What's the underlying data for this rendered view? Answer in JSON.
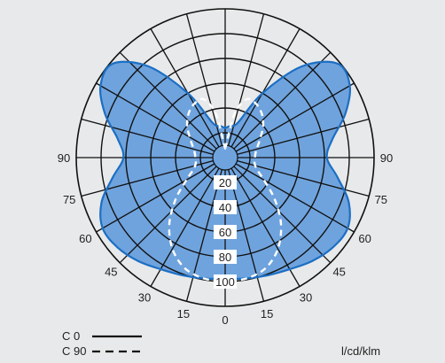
{
  "chart_data": {
    "type": "polar",
    "unit_label": "l/cd/klm",
    "radial_axis": {
      "ticks": [
        20,
        40,
        60,
        80,
        100
      ],
      "range": [
        0,
        120
      ],
      "labels": [
        "20",
        "40",
        "60",
        "80",
        "100"
      ]
    },
    "angle_labels": {
      "left": [
        "90",
        "75",
        "60",
        "45",
        "30",
        "15"
      ],
      "bottom": "0",
      "right": [
        "15",
        "30",
        "45",
        "60",
        "75",
        "90"
      ]
    },
    "angle_step_deg": 15,
    "grid": true,
    "fill_color": "#6fa3dd",
    "line_color": "#1c6fc4",
    "legend": {
      "position": "bottom-left",
      "items": [
        {
          "label": "C  0",
          "style": "solid"
        },
        {
          "label": "C 90",
          "style": "dashed"
        }
      ]
    },
    "series": [
      {
        "name": "C 0",
        "style": "solid",
        "angles": [
          0,
          10,
          20,
          30,
          40,
          50,
          60,
          70,
          80,
          90,
          100,
          110,
          120,
          130,
          140,
          150,
          160,
          170,
          180
        ],
        "values": [
          98,
          99,
          101,
          104,
          109,
          113,
          114,
          106,
          92,
          82,
          88,
          103,
          116,
          118,
          96,
          60,
          30,
          26,
          24
        ]
      },
      {
        "name": "C 90",
        "style": "dashed",
        "angles": [
          0,
          10,
          20,
          30,
          40,
          50,
          60,
          70,
          80,
          90,
          100,
          110,
          120,
          130,
          140,
          150,
          160,
          168,
          176,
          180
        ],
        "values": [
          100,
          99,
          95,
          85,
          70,
          52,
          36,
          27,
          24,
          24,
          25,
          28,
          33,
          40,
          46,
          50,
          50,
          36,
          10,
          8
        ]
      }
    ]
  }
}
